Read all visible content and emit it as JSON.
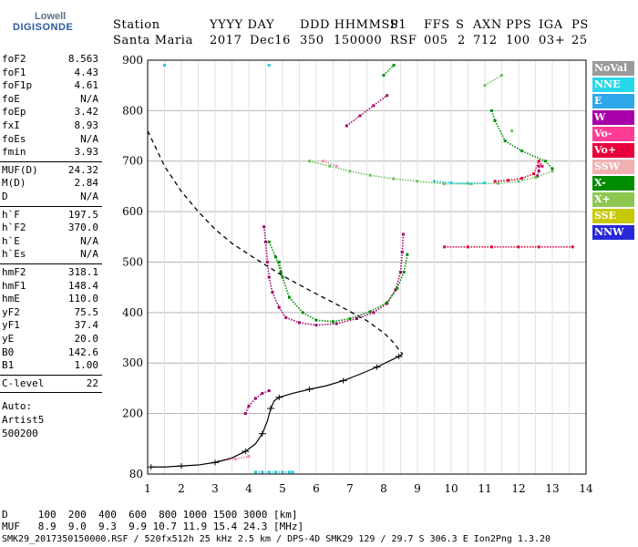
{
  "logo": {
    "line1": "Lowell",
    "line2": "DIGISONDE"
  },
  "header": {
    "station_label": "Station",
    "station_value": "Santa Maria",
    "date_label": "YYYY DAY",
    "year": "2017",
    "day": "Dec16",
    "time_label": "DDD HHMMSS",
    "doy": "350",
    "time": "150000",
    "p1_label": "P1",
    "p1": "RSF",
    "ffs_label": "FFS",
    "ffs": "005",
    "s_label": "S",
    "s": "2",
    "axn_label": "AXN",
    "axn": "712",
    "pps_label": "PPS",
    "pps": "100",
    "iga_label": "IGA",
    "iga": "03+",
    "ps_label": "PS",
    "ps": "25"
  },
  "params": {
    "g1": [
      [
        "foF2",
        "8.563"
      ],
      [
        "foF1",
        "4.43"
      ],
      [
        "foF1p",
        "4.61"
      ],
      [
        "foE",
        "N/A"
      ],
      [
        "foEp",
        "3.42"
      ],
      [
        "fxI",
        "8.93"
      ],
      [
        "foEs",
        "N/A"
      ],
      [
        "fmin",
        "3.93"
      ]
    ],
    "g2": [
      [
        "MUF(D)",
        "24.32"
      ],
      [
        "M(D)",
        "2.84"
      ],
      [
        "D",
        "N/A"
      ]
    ],
    "g3": [
      [
        "h`F",
        "197.5"
      ],
      [
        "h`F2",
        "370.0"
      ],
      [
        "h`E",
        "N/A"
      ],
      [
        "h`Es",
        "N/A"
      ]
    ],
    "g4": [
      [
        "hmF2",
        "318.1"
      ],
      [
        "hmF1",
        "148.4"
      ],
      [
        "hmE",
        "110.0"
      ],
      [
        "yF2",
        "75.5"
      ],
      [
        "yF1",
        "37.4"
      ],
      [
        "yE",
        "20.0"
      ],
      [
        "B0",
        "142.6"
      ],
      [
        "B1",
        "1.00"
      ]
    ],
    "g5": [
      [
        "C-level",
        "22"
      ]
    ],
    "autoscale": [
      "Auto:",
      "Artist5",
      "500200"
    ]
  },
  "legend": [
    {
      "label": "NoVal",
      "color": "#9a9a9a"
    },
    {
      "label": "NNE",
      "color": "#28d8ea"
    },
    {
      "label": "E",
      "color": "#2ea8ea"
    },
    {
      "label": "W",
      "color": "#a800a8"
    },
    {
      "label": "Vo-",
      "color": "#ff3c96"
    },
    {
      "label": "Vo+",
      "color": "#e8003c"
    },
    {
      "label": "SSW",
      "color": "#f0b0b0"
    },
    {
      "label": "X-",
      "color": "#008c00"
    },
    {
      "label": "X+",
      "color": "#8cc850"
    },
    {
      "label": "SSE",
      "color": "#c8c800"
    },
    {
      "label": "NNW",
      "color": "#2828d8"
    }
  ],
  "bottom": {
    "d_row": "D     100  200  400  600  800 1000 1500 3000 [km]",
    "muf_row": "MUF   8.9  9.0  9.3  9.9 10.7 11.9 15.4 24.3 [MHz]",
    "footer": "SMK29_2017350150000.RSF / 520fx512h 25 kHz 2.5 km / DPS-4D SMK29 129 / 29.7 S 306.3 E Ion2Png 1.3.20"
  },
  "chart_data": {
    "type": "scatter",
    "title": "",
    "xlabel": "",
    "ylabel": "",
    "xlim": [
      1,
      14
    ],
    "ylim": [
      80,
      900
    ],
    "x_ticks": [
      1,
      2,
      3,
      4,
      5,
      6,
      7,
      8,
      9,
      10,
      11,
      12,
      13,
      14
    ],
    "y_ticks": [
      80,
      200,
      300,
      400,
      500,
      600,
      700,
      800,
      900
    ],
    "grid": true,
    "legend_position": "right",
    "series": [
      {
        "name": "Vo-",
        "color": "#a0006a",
        "kind": "points",
        "points": [
          [
            4.45,
            570
          ],
          [
            4.5,
            540
          ],
          [
            4.55,
            500
          ],
          [
            4.6,
            470
          ],
          [
            4.7,
            440
          ],
          [
            4.9,
            410
          ],
          [
            5.1,
            390
          ],
          [
            5.5,
            380
          ],
          [
            6,
            375
          ],
          [
            6.6,
            378
          ],
          [
            7.2,
            388
          ],
          [
            7.7,
            400
          ],
          [
            8.1,
            418
          ],
          [
            8.35,
            445
          ],
          [
            8.5,
            480
          ],
          [
            8.55,
            520
          ],
          [
            8.58,
            555
          ],
          [
            3.9,
            200
          ],
          [
            4.0,
            215
          ],
          [
            4.2,
            230
          ],
          [
            4.4,
            240
          ],
          [
            4.6,
            245
          ],
          [
            6.9,
            770
          ],
          [
            7.3,
            790
          ],
          [
            7.7,
            810
          ],
          [
            8.1,
            830
          ],
          [
            12.6,
            690
          ],
          [
            12.6,
            680
          ],
          [
            12.55,
            670
          ]
        ]
      },
      {
        "name": "X-",
        "color": "#008c00",
        "kind": "points",
        "points": [
          [
            4.9,
            500
          ],
          [
            5.0,
            470
          ],
          [
            5.2,
            430
          ],
          [
            5.6,
            400
          ],
          [
            6.0,
            385
          ],
          [
            6.5,
            382
          ],
          [
            7.0,
            388
          ],
          [
            7.6,
            402
          ],
          [
            8.1,
            420
          ],
          [
            8.4,
            448
          ],
          [
            8.6,
            480
          ],
          [
            8.7,
            515
          ],
          [
            4.6,
            540
          ],
          [
            4.8,
            510
          ],
          [
            4.95,
            480
          ],
          [
            8.0,
            870
          ],
          [
            8.3,
            890
          ],
          [
            11.2,
            800
          ],
          [
            11.3,
            780
          ],
          [
            11.6,
            740
          ],
          [
            12.1,
            720
          ],
          [
            12.8,
            700
          ],
          [
            13.0,
            685
          ]
        ]
      },
      {
        "name": "X+",
        "color": "#70c060",
        "kind": "points",
        "points": [
          [
            5.8,
            700
          ],
          [
            6.4,
            690
          ],
          [
            7.0,
            680
          ],
          [
            7.6,
            672
          ],
          [
            8.3,
            665
          ],
          [
            9.0,
            660
          ],
          [
            9.8,
            655
          ],
          [
            10.6,
            655
          ],
          [
            11.4,
            656
          ],
          [
            12.0,
            660
          ],
          [
            12.5,
            668
          ],
          [
            13.0,
            680
          ],
          [
            11.0,
            850
          ],
          [
            11.5,
            870
          ],
          [
            11.8,
            760
          ]
        ]
      },
      {
        "name": "NNE",
        "color": "#28c8e0",
        "kind": "points",
        "points": [
          [
            4.2,
            84
          ],
          [
            4.4,
            84
          ],
          [
            4.6,
            84
          ],
          [
            4.8,
            84
          ],
          [
            5.0,
            84
          ],
          [
            5.2,
            84
          ],
          [
            5.3,
            84
          ],
          [
            9.5,
            660
          ],
          [
            10.0,
            657
          ],
          [
            10.5,
            656
          ],
          [
            11.0,
            657
          ],
          [
            1.5,
            890
          ],
          [
            4.6,
            890
          ]
        ]
      },
      {
        "name": "Vo+",
        "color": "#e8003c",
        "kind": "points",
        "points": [
          [
            11.3,
            660
          ],
          [
            11.7,
            662
          ],
          [
            12.1,
            666
          ],
          [
            12.45,
            675
          ],
          [
            12.6,
            700
          ],
          [
            12.7,
            690
          ],
          [
            9.8,
            530
          ],
          [
            10.5,
            530
          ],
          [
            11.2,
            530
          ],
          [
            12.0,
            530
          ],
          [
            12.6,
            530
          ],
          [
            13.6,
            530
          ]
        ]
      },
      {
        "name": "SSW",
        "color": "#e890a0",
        "kind": "points",
        "points": [
          [
            3.1,
            105
          ],
          [
            3.6,
            110
          ],
          [
            4.0,
            115
          ],
          [
            6.2,
            700
          ],
          [
            6.6,
            690
          ]
        ]
      }
    ],
    "profile": {
      "name": "hmF2 profile",
      "points": [
        [
          1.1,
          94
        ],
        [
          1.5,
          94
        ],
        [
          2.0,
          96
        ],
        [
          2.5,
          98
        ],
        [
          3.0,
          103
        ],
        [
          3.5,
          112
        ],
        [
          3.9,
          125
        ],
        [
          4.2,
          140
        ],
        [
          4.4,
          160
        ],
        [
          4.55,
          185
        ],
        [
          4.65,
          210
        ],
        [
          4.75,
          225
        ],
        [
          4.9,
          232
        ],
        [
          5.3,
          240
        ],
        [
          5.8,
          248
        ],
        [
          6.3,
          255
        ],
        [
          6.8,
          265
        ],
        [
          7.3,
          278
        ],
        [
          7.8,
          292
        ],
        [
          8.2,
          305
        ],
        [
          8.45,
          313
        ],
        [
          8.56,
          318
        ]
      ]
    },
    "virtual_height_model": {
      "name": "dashed h'F",
      "points": [
        [
          1.0,
          760
        ],
        [
          1.5,
          690
        ],
        [
          2.0,
          640
        ],
        [
          2.5,
          600
        ],
        [
          3.0,
          565
        ],
        [
          3.5,
          537
        ],
        [
          4.0,
          515
        ],
        [
          4.5,
          494
        ],
        [
          5.0,
          473
        ],
        [
          5.5,
          455
        ],
        [
          6.0,
          437
        ],
        [
          6.5,
          420
        ],
        [
          7.0,
          402
        ],
        [
          7.5,
          384
        ],
        [
          8.0,
          360
        ],
        [
          8.3,
          340
        ],
        [
          8.5,
          322
        ],
        [
          8.56,
          318
        ]
      ]
    }
  }
}
